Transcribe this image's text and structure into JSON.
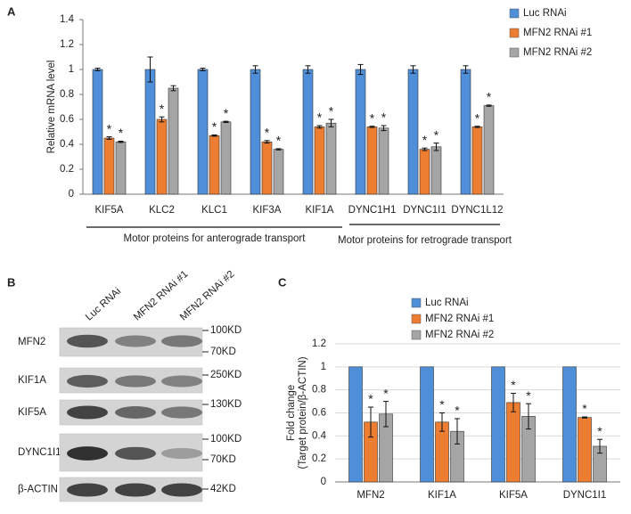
{
  "chart_data": [
    {
      "type": "bar",
      "label": "A",
      "y_label": "Relative mRNA level",
      "categories": [
        "KIF5A",
        "KLC2",
        "KLC1",
        "KIF3A",
        "KIF1A",
        "DYNC1H1",
        "DYNC1I1",
        "DYNC1L12"
      ],
      "series": [
        {
          "name": "Luc RNAi",
          "color": "#4f8fd9",
          "values": [
            1,
            1,
            1,
            1,
            1,
            1,
            1,
            1
          ],
          "errors": [
            0.01,
            0.1,
            0.01,
            0.03,
            0.03,
            0.04,
            0.03,
            0.03
          ]
        },
        {
          "name": "MFN2 RNAi #1",
          "color": "#ed7d31",
          "values": [
            0.45,
            0.6,
            0.47,
            0.42,
            0.54,
            0.54,
            0.36,
            0.54
          ],
          "errors": [
            0.01,
            0.02,
            0.005,
            0.01,
            0.01,
            0.005,
            0.01,
            0.005
          ],
          "significance": [
            "*",
            "*",
            "*",
            "*",
            "*",
            "*",
            "*",
            "*"
          ]
        },
        {
          "name": "MFN2 RNAi #2",
          "color": "#a5a5a5",
          "values": [
            0.42,
            0.85,
            0.58,
            0.36,
            0.57,
            0.53,
            0.38,
            0.71
          ],
          "errors": [
            0.005,
            0.02,
            0.005,
            0.005,
            0.03,
            0.02,
            0.03,
            0.005
          ],
          "significance": [
            "*",
            null,
            "*",
            "*",
            "*",
            "*",
            "*",
            "*"
          ]
        }
      ],
      "ylim": [
        0,
        1.4
      ],
      "yticks": [
        0,
        0.2,
        0.4,
        0.6,
        0.8,
        1,
        1.2,
        1.4
      ],
      "grid": false,
      "legend": "top-right",
      "groups": [
        {
          "label": "Motor proteins for anterograde transport",
          "size": 5
        },
        {
          "label": "Motor proteins for retrograde transport",
          "size": 3
        }
      ]
    },
    {
      "type": "bar",
      "label": "C",
      "y_label": [
        "Fold change",
        "(Target protein/β-ACTIN)"
      ],
      "categories": [
        "MFN2",
        "KIF1A",
        "KIF5A",
        "DYNC1I1"
      ],
      "series": [
        {
          "name": "Luc RNAi",
          "color": "#4f8fd9",
          "values": [
            1,
            1,
            1,
            1
          ]
        },
        {
          "name": "MFN2 RNAi #1",
          "color": "#ed7d31",
          "values": [
            0.52,
            0.52,
            0.69,
            0.56
          ],
          "errors": [
            0.13,
            0.08,
            0.08,
            0.005
          ],
          "significance": [
            "*",
            "*",
            "*",
            "*"
          ]
        },
        {
          "name": "MFN2 RNAi #2",
          "color": "#a5a5a5",
          "values": [
            0.59,
            0.44,
            0.57,
            0.31
          ],
          "errors": [
            0.11,
            0.11,
            0.11,
            0.06
          ],
          "significance": [
            "*",
            "*",
            "*",
            "*"
          ]
        }
      ],
      "ylim": [
        0,
        1.2
      ],
      "yticks": [
        0,
        0.2,
        0.4,
        0.6,
        0.8,
        1,
        1.2
      ],
      "grid": true,
      "legend": "top"
    }
  ],
  "blot": {
    "label": "B",
    "lanes": [
      "Luc RNAi",
      "MFN2 RNAi #1",
      "MFN2 RNAi #2"
    ],
    "rows": [
      {
        "name": "MFN2",
        "markers": [
          "100KD",
          "70KD"
        ]
      },
      {
        "name": "KIF1A",
        "markers": [
          "250KD"
        ]
      },
      {
        "name": "KIF5A",
        "markers": [
          "130KD"
        ]
      },
      {
        "name": "DYNC1I1",
        "markers": [
          "100KD",
          "70KD"
        ]
      },
      {
        "name": "β-ACTIN",
        "markers": [
          "42KD"
        ]
      }
    ]
  }
}
